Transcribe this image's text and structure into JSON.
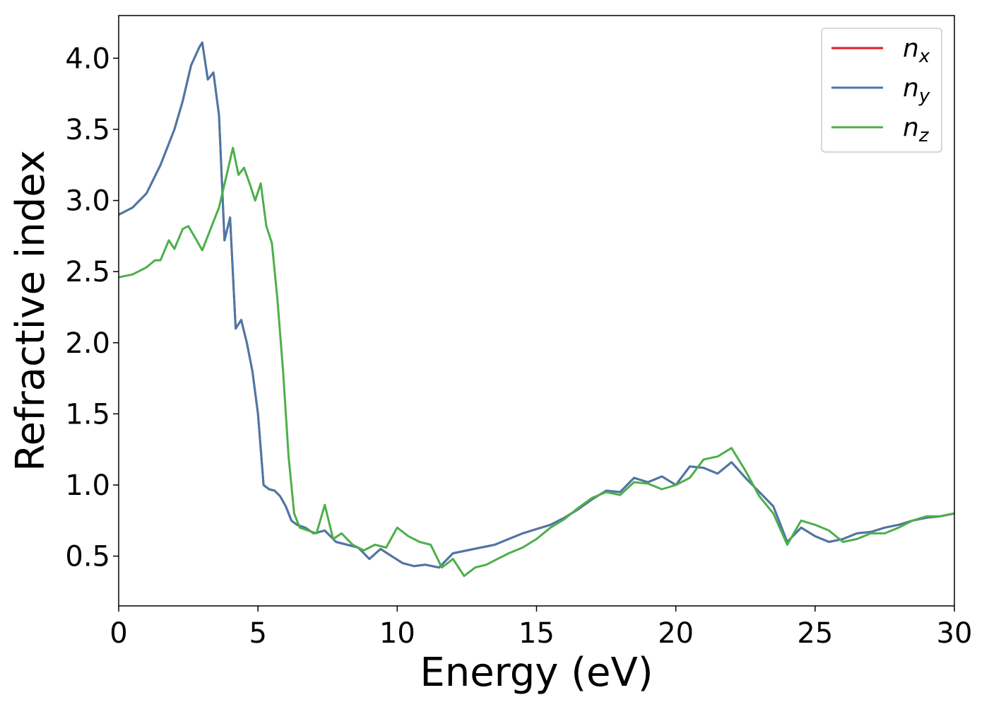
{
  "chart_data": {
    "type": "line",
    "xlabel": "Energy (eV)",
    "ylabel": "Refractive index",
    "xlim": [
      0,
      30
    ],
    "ylim": [
      0.15,
      4.3
    ],
    "xticks": [
      0,
      5,
      10,
      15,
      20,
      25,
      30
    ],
    "xtick_labels": [
      "0",
      "5",
      "10",
      "15",
      "20",
      "25",
      "30"
    ],
    "yticks": [
      0.5,
      1.0,
      1.5,
      2.0,
      2.5,
      3.0,
      3.5,
      4.0
    ],
    "ytick_labels": [
      "0.5",
      "1.0",
      "1.5",
      "2.0",
      "2.5",
      "3.0",
      "3.5",
      "4.0"
    ],
    "grid": false,
    "legend_position": "top-right",
    "series": [
      {
        "name": "n",
        "subscript": "x",
        "color": "#e41a1c",
        "x": [
          0,
          0.5,
          1,
          1.5,
          2,
          2.3,
          2.6,
          2.9,
          3.0,
          3.2,
          3.4,
          3.6,
          3.8,
          4.0,
          4.2,
          4.4,
          4.6,
          4.8,
          5.0,
          5.2,
          5.4,
          5.6,
          5.8,
          6.0,
          6.2,
          6.4,
          6.7,
          7.0,
          7.4,
          7.8,
          8.2,
          8.6,
          9.0,
          9.4,
          9.8,
          10.2,
          10.6,
          11.0,
          11.5,
          12.0,
          12.5,
          13.0,
          13.5,
          14.0,
          14.5,
          15.0,
          15.5,
          16.0,
          16.5,
          17.0,
          17.5,
          18.0,
          18.5,
          19.0,
          19.5,
          20.0,
          20.5,
          21.0,
          21.5,
          22.0,
          22.5,
          23.0,
          23.5,
          24.0,
          24.5,
          25.0,
          25.5,
          26.0,
          26.5,
          27.0,
          27.5,
          28.0,
          28.5,
          29.0,
          29.5,
          30.0
        ],
        "y": [
          2.9,
          2.95,
          3.05,
          3.25,
          3.5,
          3.7,
          3.95,
          4.08,
          4.11,
          3.85,
          3.9,
          3.6,
          2.72,
          2.88,
          2.1,
          2.16,
          2.0,
          1.8,
          1.5,
          1.0,
          0.97,
          0.96,
          0.92,
          0.85,
          0.75,
          0.72,
          0.7,
          0.66,
          0.68,
          0.6,
          0.58,
          0.56,
          0.48,
          0.55,
          0.5,
          0.45,
          0.43,
          0.44,
          0.42,
          0.52,
          0.54,
          0.56,
          0.58,
          0.62,
          0.66,
          0.69,
          0.72,
          0.77,
          0.83,
          0.9,
          0.96,
          0.95,
          1.05,
          1.02,
          1.06,
          1.0,
          1.13,
          1.12,
          1.08,
          1.16,
          1.05,
          0.95,
          0.85,
          0.6,
          0.7,
          0.64,
          0.6,
          0.62,
          0.66,
          0.67,
          0.7,
          0.72,
          0.75,
          0.77,
          0.78,
          0.8
        ]
      },
      {
        "name": "n",
        "subscript": "y",
        "color": "#4a78a8",
        "x": [
          0,
          0.5,
          1,
          1.5,
          2,
          2.3,
          2.6,
          2.9,
          3.0,
          3.2,
          3.4,
          3.6,
          3.8,
          4.0,
          4.2,
          4.4,
          4.6,
          4.8,
          5.0,
          5.2,
          5.4,
          5.6,
          5.8,
          6.0,
          6.2,
          6.4,
          6.7,
          7.0,
          7.4,
          7.8,
          8.2,
          8.6,
          9.0,
          9.4,
          9.8,
          10.2,
          10.6,
          11.0,
          11.5,
          12.0,
          12.5,
          13.0,
          13.5,
          14.0,
          14.5,
          15.0,
          15.5,
          16.0,
          16.5,
          17.0,
          17.5,
          18.0,
          18.5,
          19.0,
          19.5,
          20.0,
          20.5,
          21.0,
          21.5,
          22.0,
          22.5,
          23.0,
          23.5,
          24.0,
          24.5,
          25.0,
          25.5,
          26.0,
          26.5,
          27.0,
          27.5,
          28.0,
          28.5,
          29.0,
          29.5,
          30.0
        ],
        "y": [
          2.9,
          2.95,
          3.05,
          3.25,
          3.5,
          3.7,
          3.95,
          4.08,
          4.11,
          3.85,
          3.9,
          3.6,
          2.72,
          2.88,
          2.1,
          2.16,
          2.0,
          1.8,
          1.5,
          1.0,
          0.97,
          0.96,
          0.92,
          0.85,
          0.75,
          0.72,
          0.7,
          0.66,
          0.68,
          0.6,
          0.58,
          0.56,
          0.48,
          0.55,
          0.5,
          0.45,
          0.43,
          0.44,
          0.42,
          0.52,
          0.54,
          0.56,
          0.58,
          0.62,
          0.66,
          0.69,
          0.72,
          0.77,
          0.83,
          0.9,
          0.96,
          0.95,
          1.05,
          1.02,
          1.06,
          1.0,
          1.13,
          1.12,
          1.08,
          1.16,
          1.05,
          0.95,
          0.85,
          0.6,
          0.7,
          0.64,
          0.6,
          0.62,
          0.66,
          0.67,
          0.7,
          0.72,
          0.75,
          0.77,
          0.78,
          0.8
        ]
      },
      {
        "name": "n",
        "subscript": "z",
        "color": "#4daf4a",
        "x": [
          0,
          0.5,
          1,
          1.3,
          1.5,
          1.8,
          2.0,
          2.3,
          2.5,
          2.8,
          3.0,
          3.3,
          3.6,
          3.9,
          4.1,
          4.3,
          4.5,
          4.7,
          4.9,
          5.1,
          5.3,
          5.5,
          5.7,
          5.9,
          6.1,
          6.3,
          6.5,
          6.8,
          7.1,
          7.4,
          7.7,
          8.0,
          8.4,
          8.8,
          9.2,
          9.6,
          10.0,
          10.4,
          10.8,
          11.2,
          11.6,
          12.0,
          12.4,
          12.8,
          13.2,
          13.6,
          14.0,
          14.5,
          15.0,
          15.5,
          16.0,
          16.5,
          17.0,
          17.5,
          18.0,
          18.5,
          19.0,
          19.5,
          20.0,
          20.5,
          21.0,
          21.5,
          22.0,
          22.5,
          23.0,
          23.5,
          24.0,
          24.5,
          25.0,
          25.5,
          26.0,
          26.5,
          27.0,
          27.5,
          28.0,
          28.5,
          29.0,
          29.5,
          30.0
        ],
        "y": [
          2.46,
          2.48,
          2.53,
          2.58,
          2.58,
          2.72,
          2.66,
          2.8,
          2.82,
          2.72,
          2.65,
          2.8,
          2.95,
          3.2,
          3.37,
          3.18,
          3.23,
          3.12,
          3.0,
          3.12,
          2.82,
          2.7,
          2.3,
          1.8,
          1.2,
          0.8,
          0.7,
          0.68,
          0.66,
          0.86,
          0.62,
          0.66,
          0.58,
          0.54,
          0.58,
          0.56,
          0.7,
          0.64,
          0.6,
          0.58,
          0.42,
          0.48,
          0.36,
          0.42,
          0.44,
          0.48,
          0.52,
          0.56,
          0.62,
          0.7,
          0.76,
          0.84,
          0.91,
          0.95,
          0.93,
          1.02,
          1.01,
          0.97,
          1.0,
          1.05,
          1.18,
          1.2,
          1.26,
          1.1,
          0.92,
          0.8,
          0.58,
          0.75,
          0.72,
          0.68,
          0.6,
          0.62,
          0.66,
          0.66,
          0.7,
          0.75,
          0.78,
          0.78,
          0.8
        ]
      }
    ]
  }
}
